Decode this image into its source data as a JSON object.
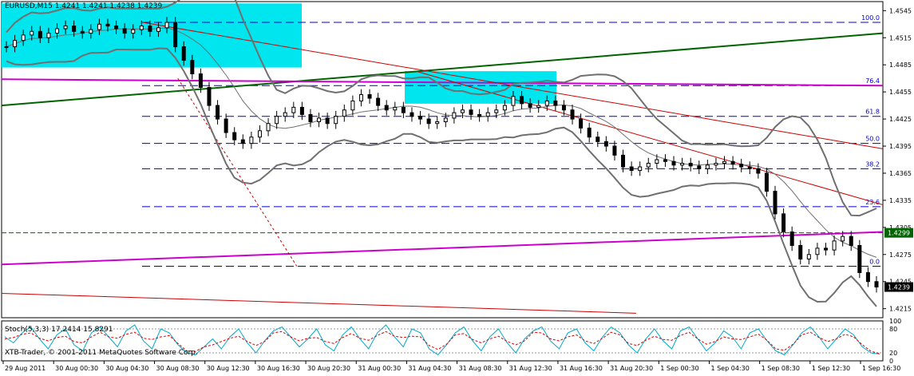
{
  "chart_data": {
    "type": "candlestick",
    "symbol_line": "EURUSD,M15  1.4241 1.4241 1.4238 1.4239",
    "stochastic_label": "Stoch(5,3,3) 17.2414 15.8291",
    "watermark": "XTB-Trader, © 2001-2011 MetaQuotes Software Corp.",
    "price_ticks": [
      "1.4545",
      "1.4515",
      "1.4485",
      "1.4455",
      "1.4425",
      "1.4395",
      "1.4365",
      "1.4335",
      "1.4305",
      "1.4275",
      "1.4245",
      "1.4215"
    ],
    "price_tick_values": [
      1.4545,
      1.4515,
      1.4485,
      1.4455,
      1.4425,
      1.4395,
      1.4365,
      1.4335,
      1.4305,
      1.4275,
      1.4245,
      1.4215
    ],
    "ylim": [
      1.4205,
      1.4555
    ],
    "stoch_ticks": [
      "100",
      "80",
      "20",
      "0"
    ],
    "stoch_tick_values": [
      100,
      80,
      20,
      0
    ],
    "time_labels": [
      "29 Aug 2011",
      "30 Aug 00:30",
      "30 Aug 04:30",
      "30 Aug 08:30",
      "30 Aug 12:30",
      "30 Aug 16:30",
      "30 Aug 20:30",
      "31 Aug 00:30",
      "31 Aug 04:30",
      "31 Aug 08:30",
      "31 Aug 12:30",
      "31 Aug 16:30",
      "31 Aug 20:30",
      "1 Sep 00:30",
      "1 Sep 04:30",
      "1 Sep 08:30",
      "1 Sep 12:30",
      "1 Sep 16:30"
    ],
    "fibonacci": {
      "levels": [
        "100.0",
        "76.4",
        "61.8",
        "50.0",
        "38.2",
        "23.6",
        "0.0"
      ],
      "prices": [
        1.4532,
        1.4462,
        1.4428,
        1.4398,
        1.437,
        1.4328,
        1.4262
      ]
    },
    "price_badges": [
      {
        "label": "1.4299",
        "value": 1.4299,
        "color": "#006400"
      },
      {
        "label": "1.4239",
        "value": 1.4239,
        "color": "#000000"
      }
    ],
    "horizontal_lines": [
      {
        "value": 1.4299,
        "color": "#006400",
        "style": "dashed"
      }
    ],
    "close_path": [
      1.4505,
      1.4512,
      1.4518,
      1.4522,
      1.4515,
      1.452,
      1.4525,
      1.4528,
      1.4522,
      1.452,
      1.4524,
      1.453,
      1.4528,
      1.4525,
      1.452,
      1.4524,
      1.4528,
      1.4522,
      1.4526,
      1.4532,
      1.4505,
      1.449,
      1.4475,
      1.446,
      1.444,
      1.4425,
      1.441,
      1.4402,
      1.4398,
      1.4405,
      1.4412,
      1.442,
      1.4428,
      1.4432,
      1.4438,
      1.443,
      1.4422,
      1.4426,
      1.442,
      1.4428,
      1.4435,
      1.4445,
      1.4452,
      1.4448,
      1.444,
      1.4435,
      1.4438,
      1.4432,
      1.4428,
      1.4425,
      1.442,
      1.4422,
      1.4426,
      1.4432,
      1.4435,
      1.443,
      1.4428,
      1.4432,
      1.4435,
      1.444,
      1.445,
      1.4442,
      1.4438,
      1.444,
      1.4445,
      1.444,
      1.4435,
      1.4425,
      1.4415,
      1.4405,
      1.44,
      1.4395,
      1.4385,
      1.4372,
      1.4368,
      1.4372,
      1.4376,
      1.438,
      1.4378,
      1.4374,
      1.4376,
      1.4373,
      1.437,
      1.4374,
      1.4376,
      1.4378,
      1.4375,
      1.4372,
      1.437,
      1.4365,
      1.4345,
      1.432,
      1.43,
      1.4285,
      1.427,
      1.4275,
      1.4282,
      1.428,
      1.429,
      1.4295,
      1.4285,
      1.4255,
      1.4245,
      1.4239
    ],
    "stoch_path": [
      60,
      45,
      70,
      85,
      55,
      30,
      65,
      80,
      40,
      25,
      70,
      85,
      60,
      35,
      75,
      90,
      50,
      30,
      80,
      70,
      40,
      20,
      15,
      35,
      55,
      30,
      60,
      80,
      45,
      20,
      50,
      75,
      85,
      60,
      35,
      55,
      80,
      40,
      25,
      65,
      85,
      55,
      30,
      70,
      90,
      60,
      35,
      80,
      70,
      30,
      15,
      40,
      70,
      85,
      50,
      25,
      60,
      80,
      45,
      20,
      55,
      75,
      85,
      50,
      30,
      70,
      80,
      45,
      25,
      60,
      85,
      70,
      40,
      20,
      55,
      80,
      50,
      30,
      75,
      85,
      55,
      25,
      45,
      75,
      60,
      30,
      70,
      80,
      50,
      25,
      15,
      40,
      70,
      85,
      60,
      30,
      55,
      80,
      65,
      35,
      20,
      17
    ]
  }
}
